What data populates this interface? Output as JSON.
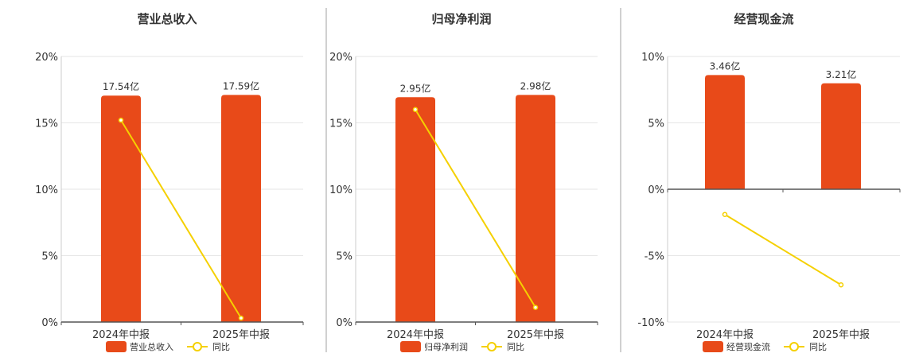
{
  "chart_data": [
    {
      "type": "bar",
      "title": "营业总收入",
      "categories": [
        "2024年中报",
        "2025年中报"
      ],
      "bar_labels": [
        "17.54亿",
        "17.59亿"
      ],
      "series": [
        {
          "name": "营业总收入",
          "type": "bar",
          "values": [
            17.54,
            17.59
          ]
        },
        {
          "name": "同比",
          "type": "line",
          "values": [
            15.2,
            0.3
          ]
        }
      ],
      "yticks": [
        "20%",
        "15%",
        "10%",
        "5%",
        "0%"
      ],
      "ylim": [
        0,
        20
      ],
      "bar_color": "#E84A19",
      "line_color": "#F5D000",
      "legend_position": "bottom"
    },
    {
      "type": "bar",
      "title": "归母净利润",
      "categories": [
        "2024年中报",
        "2025年中报"
      ],
      "bar_labels": [
        "2.95亿",
        "2.98亿"
      ],
      "series": [
        {
          "name": "归母净利润",
          "type": "bar",
          "values": [
            2.95,
            2.98
          ]
        },
        {
          "name": "同比",
          "type": "line",
          "values": [
            16.0,
            1.1
          ]
        }
      ],
      "yticks": [
        "20%",
        "15%",
        "10%",
        "5%",
        "0%"
      ],
      "ylim": [
        0,
        20
      ],
      "bar_color": "#E84A19",
      "line_color": "#F5D000",
      "legend_position": "bottom"
    },
    {
      "type": "bar",
      "title": "经营现金流",
      "categories": [
        "2024年中报",
        "2025年中报"
      ],
      "bar_labels": [
        "3.46亿",
        "3.21亿"
      ],
      "series": [
        {
          "name": "经营现金流",
          "type": "bar",
          "values": [
            3.46,
            3.21
          ]
        },
        {
          "name": "同比",
          "type": "line",
          "values": [
            -1.9,
            -7.2
          ]
        }
      ],
      "yticks": [
        "10%",
        "5%",
        "0%",
        "-5%",
        "-10%"
      ],
      "ylim": [
        -10,
        10
      ],
      "bar_color": "#E84A19",
      "line_color": "#F5D000",
      "legend_position": "bottom"
    }
  ]
}
